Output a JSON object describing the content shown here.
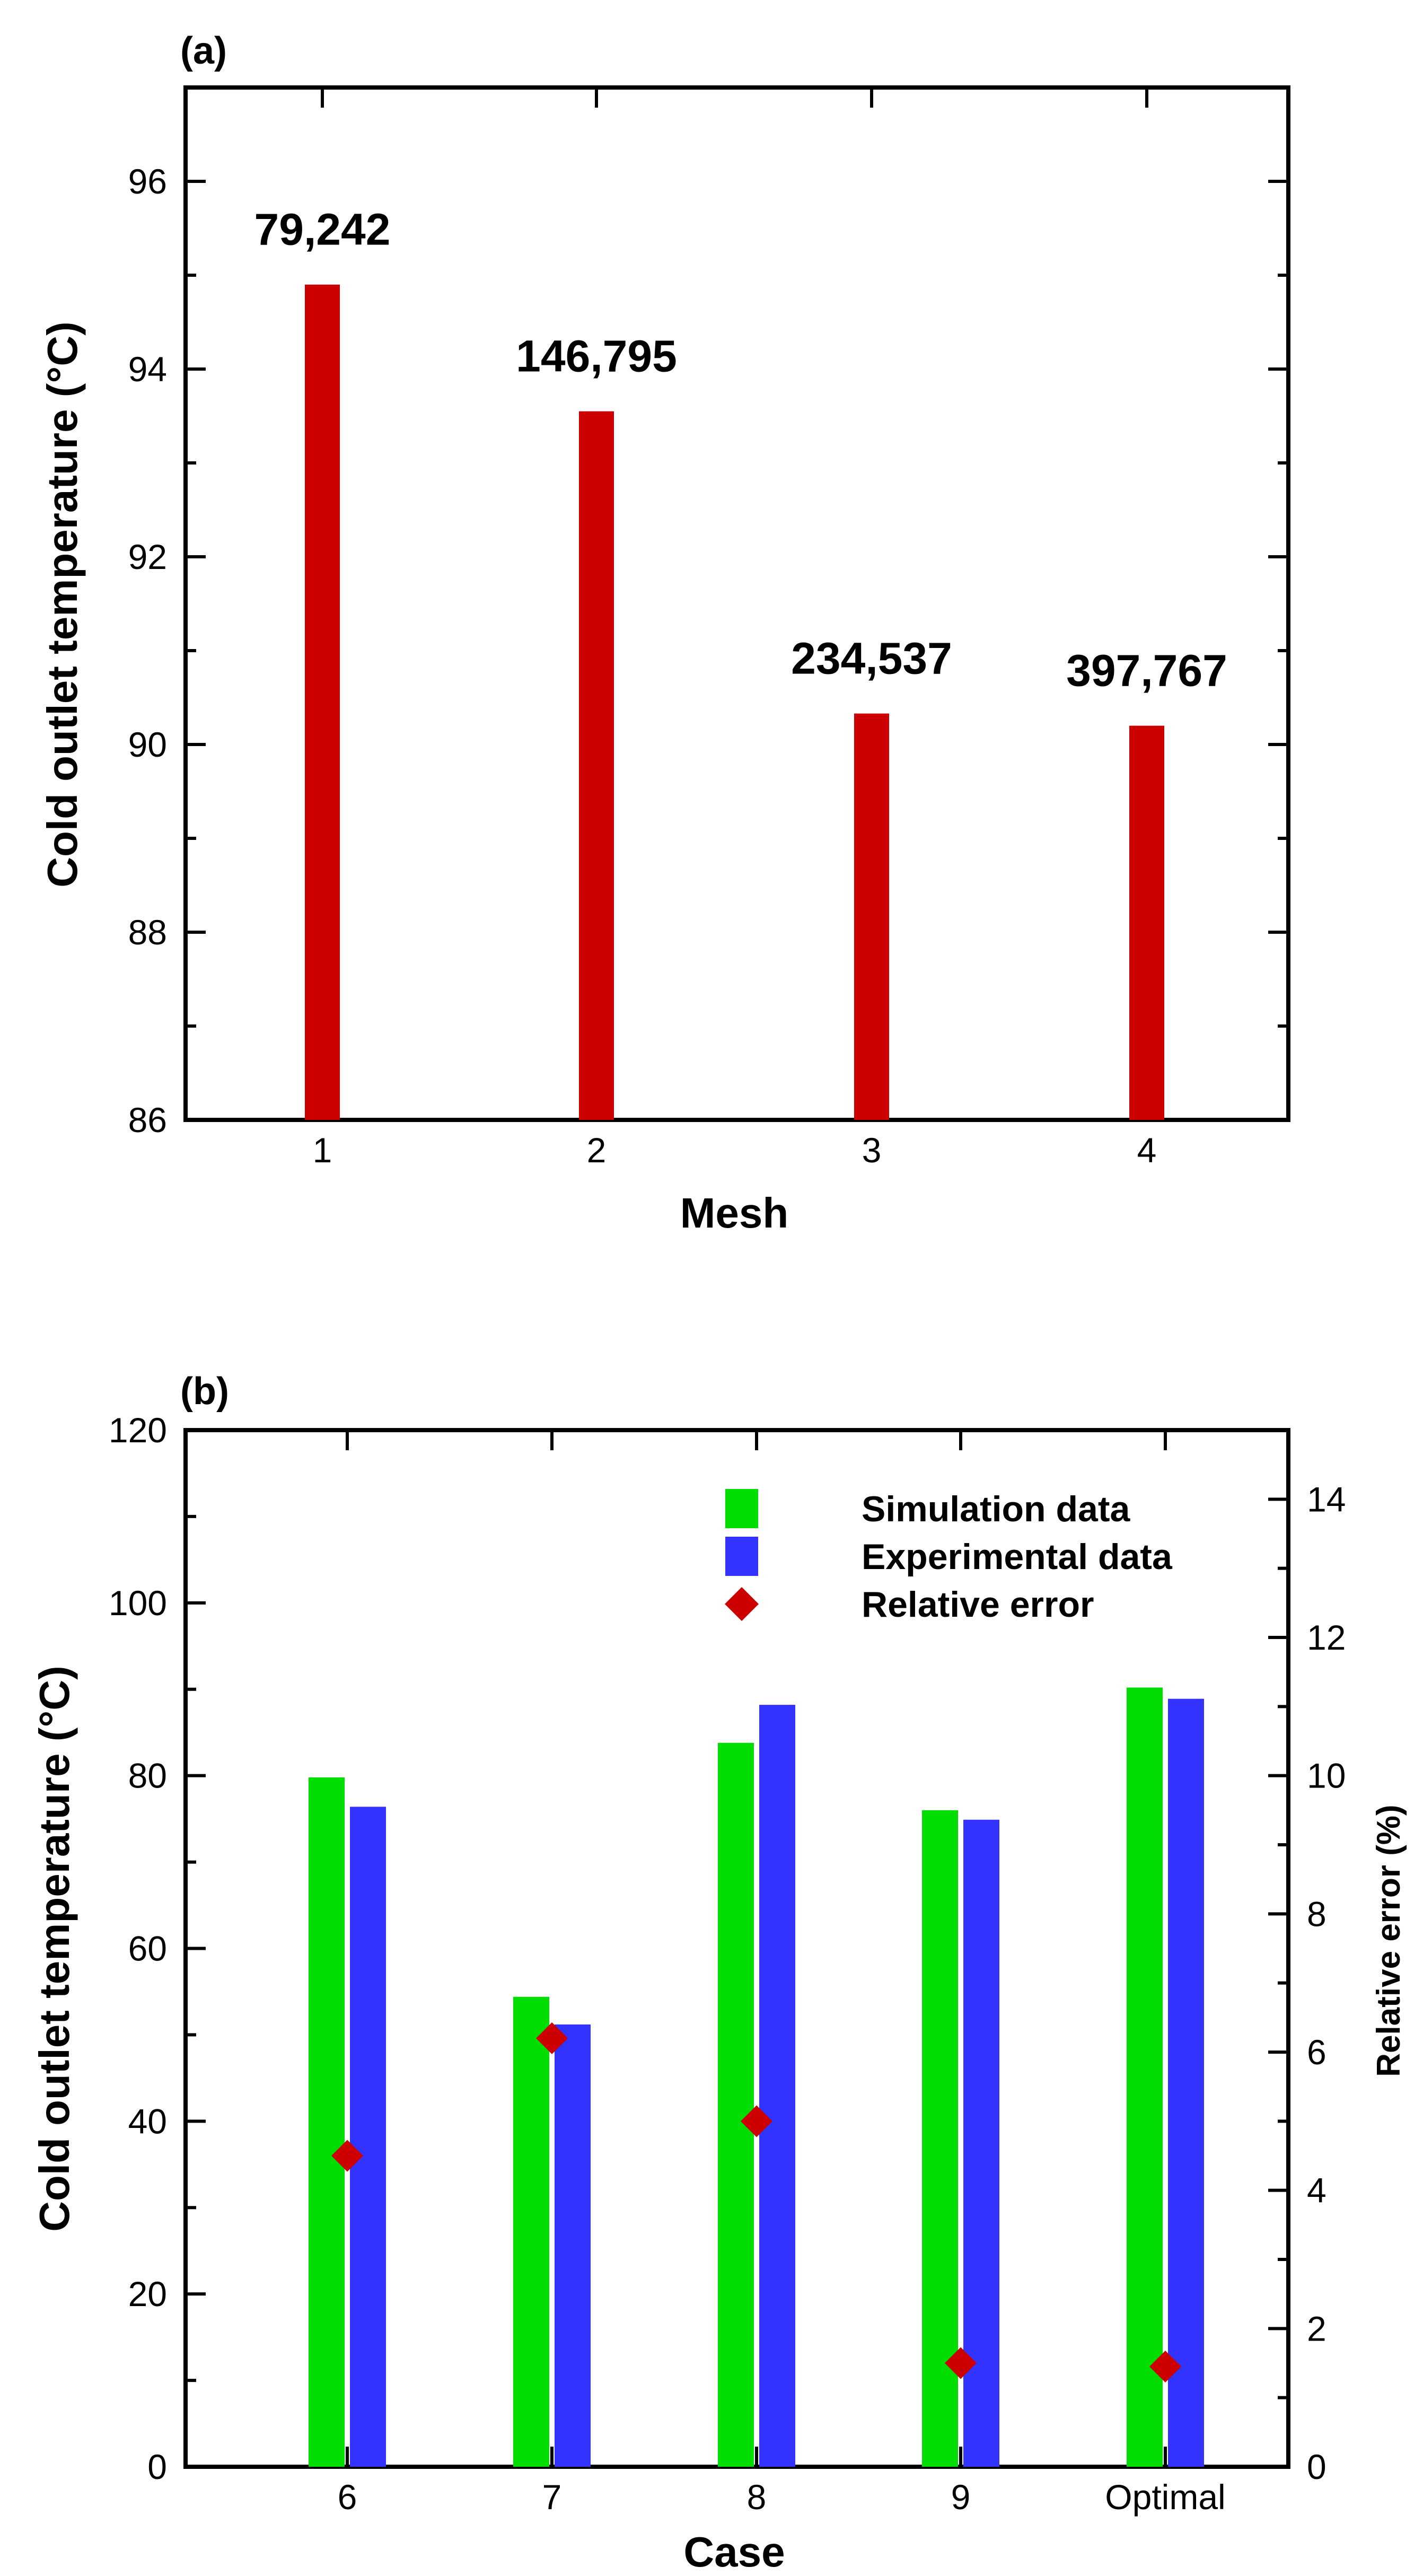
{
  "chart_data": [
    {
      "type": "bar",
      "panel_label": "(a)",
      "xlabel": "Mesh",
      "ylabel": "Cold outlet temperature  (°C)",
      "categories": [
        "1",
        "2",
        "3",
        "4"
      ],
      "values": [
        94.9,
        93.55,
        90.33,
        90.2
      ],
      "data_labels": [
        "79,242",
        "146,795",
        "234,537",
        "397,767"
      ],
      "ylim": [
        86,
        97
      ],
      "yticks": [
        86,
        88,
        90,
        92,
        94,
        96
      ],
      "yticks_labels": [
        "86",
        "88",
        "90",
        "92",
        "94",
        "96"
      ],
      "color": "#cc0000"
    },
    {
      "type": "bar",
      "panel_label": "(b)",
      "xlabel": "Case",
      "ylabel": "Cold outlet temperature  (°C)",
      "y2label": "Relative error (%)",
      "categories": [
        "6",
        "7",
        "8",
        "9",
        "Optimal"
      ],
      "series": [
        {
          "name": "Simulation data",
          "color": "#00dd00",
          "values": [
            79.8,
            54.4,
            83.8,
            76.0,
            90.2
          ],
          "axis": "left",
          "marker": "bar"
        },
        {
          "name": "Experimental data",
          "color": "#3333ff",
          "values": [
            76.4,
            51.2,
            88.2,
            74.9,
            88.9
          ],
          "axis": "left",
          "marker": "bar"
        },
        {
          "name": "Relative error",
          "color": "#cc0000",
          "values": [
            4.5,
            6.2,
            5.0,
            1.5,
            1.45
          ],
          "axis": "right",
          "marker": "diamond"
        }
      ],
      "ylim": [
        0,
        120
      ],
      "yticks": [
        0,
        20,
        40,
        60,
        80,
        100,
        120
      ],
      "yticks_labels": [
        "0",
        "20",
        "40",
        "60",
        "80",
        "100",
        "120"
      ],
      "y2lim": [
        0,
        15
      ],
      "y2ticks": [
        0,
        2,
        4,
        6,
        8,
        10,
        12,
        14
      ],
      "y2ticks_labels": [
        "0",
        "2",
        "4",
        "6",
        "8",
        "10",
        "12",
        "14"
      ],
      "legend_position": "top-right"
    }
  ]
}
